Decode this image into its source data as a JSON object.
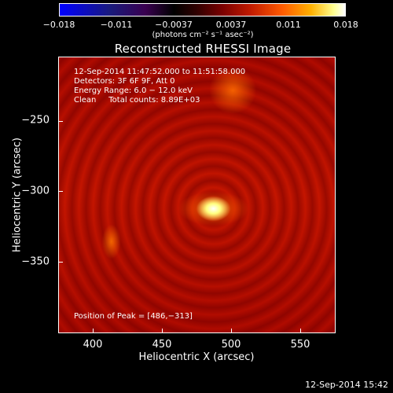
{
  "colorbar": {
    "ticks": [
      "−0.018",
      "−0.011",
      "−0.0037",
      "0.0037",
      "0.011",
      "0.018"
    ],
    "unit_label": "(photons cm⁻² s⁻¹ asec⁻²)"
  },
  "title": "Reconstructed RHESSI Image",
  "annotation": {
    "line1": "12-Sep-2014 11:47:52.000 to 11:51:58.000",
    "line2": "Detectors: 3F 6F 9F, Att 0",
    "line3": "Energy Range: 6.0 − 12.0 keV",
    "line4": "Clean     Total counts: 8.89E+03",
    "peak": "Position of Peak = [486,−313]"
  },
  "axes": {
    "xlabel": "Heliocentric X (arcsec)",
    "ylabel": "Heliocentric Y (arcsec)",
    "xticks": [
      "400",
      "450",
      "500",
      "550"
    ],
    "yticks": [
      "−250",
      "−300",
      "−350"
    ]
  },
  "timestamp": "12-Sep-2014 15:42"
}
